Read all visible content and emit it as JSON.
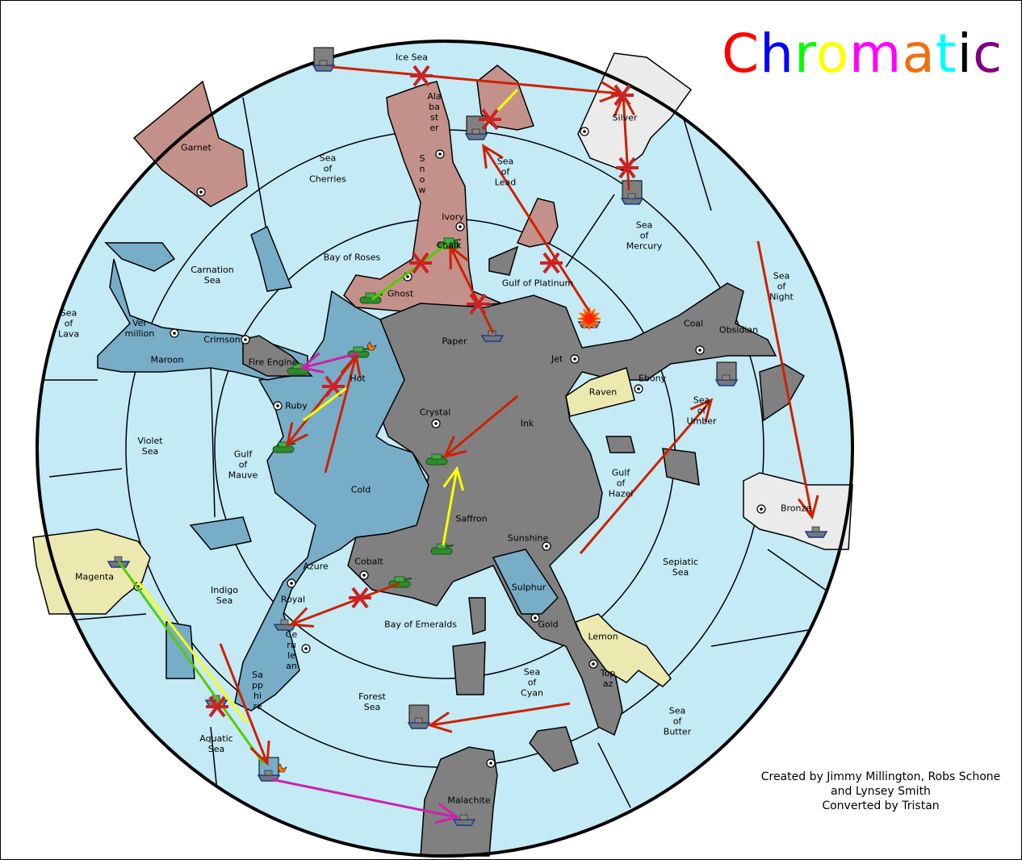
{
  "title": {
    "letters": [
      "C",
      "h",
      "r",
      "o",
      "m",
      "a",
      "t",
      "i",
      "c"
    ],
    "colors": [
      "#ff0000",
      "#0000ff",
      "#00ff00",
      "#ffff00",
      "#ff00ff",
      "#f07010",
      "#00ffff",
      "#000000",
      "#800080"
    ]
  },
  "credits": {
    "line1": "Created by Jimmy Millington, Robs Schone",
    "line2": "and Lynsey Smith",
    "line3": "Converted by Tristan"
  },
  "colors": {
    "sea": "#c4eaf5",
    "rose": "#c4918a",
    "ink": "#808080",
    "blue": "#78adc8",
    "silver": "#ebebeb",
    "lemon": "#ebe9b0",
    "order_move": "#cc2200",
    "order_support": "#ffff00",
    "order_convoy": "#55cc00",
    "order_retreat": "#cc22aa"
  },
  "regions": {
    "ice_sea": "Ice Sea",
    "alabaster": "Ala\nba\nst\ner",
    "snow": "S\nn\no\nw",
    "ivory": "Ivory",
    "chalk": "Chalk",
    "ghost": "Ghost",
    "sea_cherries": "Sea\nof\nCherries",
    "bay_roses": "Bay of Roses",
    "sea_lead": "Sea\nof\nLead",
    "silver": "Silver",
    "sea_mercury": "Sea\nof\nMercury",
    "gulf_platinum": "Gulf of Platinum",
    "garnet": "Garnet",
    "carnation": "Carnation\nSea",
    "sea_lava": "Sea\nof\nLava",
    "vermillion": "Ver\n  million",
    "crimson": "Crimson",
    "maroon": "Maroon",
    "fire_engine": "Fire Engine",
    "hot": "Hot",
    "ruby": "Ruby",
    "paper": "Paper",
    "jet": "Jet",
    "coal": "Coal",
    "obsidian": "Obsidian",
    "ebony": "Ebony",
    "raven": "Raven",
    "sea_night": "Sea\nof\nNight",
    "sea_umber": "Sea\nof\nUmber",
    "crystal": "Crystal",
    "ink": "Ink",
    "violet": "Violet\nSea",
    "gulf_mauve": "Gulf\nof\nMauve",
    "cold": "Cold",
    "gulf_hazel": "Gulf\nof\nHazel",
    "bronze": "Bronze",
    "saffron": "Saffron",
    "sunshine": "Sunshine",
    "sepiatic": "Sepiatic\nSea",
    "magenta": "Magenta",
    "azure": "Azure",
    "cobalt": "Cobalt",
    "indigo": "Indigo\nSea",
    "royal": "Royal",
    "sulphur": "Sulphur",
    "gold": "Gold",
    "bay_emeralds": "Bay of Emeralds",
    "lemon": "Lemon",
    "cerulean": "Ce\nru\nle\nan",
    "sapphire": "Sa\npp\nhi\nre",
    "topaz": "Top\naz",
    "sea_cyan": "Sea\nof\nCyan",
    "forest": "Forest\nSea",
    "aquatic": "Aquatic\nSea",
    "sea_butter": "Sea\nof\nButter",
    "malachite": "Malachite"
  },
  "units": [
    {
      "type": "fleet",
      "region": "Ice Sea",
      "dislodged": true
    },
    {
      "type": "fleet",
      "region": "Sea of Lead",
      "dislodged": true
    },
    {
      "type": "fleet",
      "region": "Sea of Mercury",
      "dislodged": true
    },
    {
      "type": "army",
      "region": "Chalk"
    },
    {
      "type": "army",
      "region": "Ghost"
    },
    {
      "type": "fleet",
      "region": "Paper"
    },
    {
      "type": "fleet",
      "region": "Gulf of Platinum",
      "destroyed": true
    },
    {
      "type": "army",
      "region": "Hot",
      "bounce": true
    },
    {
      "type": "army",
      "region": "Fire Engine"
    },
    {
      "type": "army",
      "region": "Ruby"
    },
    {
      "type": "army",
      "region": "Crystal"
    },
    {
      "type": "army",
      "region": "Saffron"
    },
    {
      "type": "army",
      "region": "Cobalt"
    },
    {
      "type": "fleet",
      "region": "Royal"
    },
    {
      "type": "fleet",
      "region": "Magenta"
    },
    {
      "type": "fleet",
      "region": "Sapphire"
    },
    {
      "type": "fleet",
      "region": "Aquatic Sea",
      "dislodged": true,
      "bounce": true
    },
    {
      "type": "fleet",
      "region": "Forest Sea",
      "dislodged": true
    },
    {
      "type": "fleet",
      "region": "Malachite"
    },
    {
      "type": "fleet",
      "region": "Sea of Umber",
      "dislodged": true
    },
    {
      "type": "fleet",
      "region": "Bronze"
    }
  ]
}
